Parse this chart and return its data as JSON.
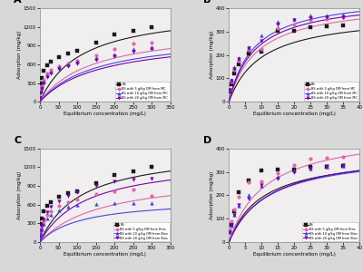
{
  "panels": [
    "A",
    "B",
    "C",
    "D"
  ],
  "bg_color": "#e8e8e8",
  "panel_A": {
    "title": "A",
    "xlabel": "Equilibrium concentration (mg/L)",
    "ylabel": "Adsorption (mg/kg)",
    "xlim": [
      0,
      350
    ],
    "ylim": [
      0,
      1500
    ],
    "xticks": [
      0,
      50,
      100,
      150,
      200,
      250,
      300,
      350
    ],
    "yticks": [
      0,
      300,
      600,
      900,
      1200,
      1500
    ],
    "legend_loc": "lower right",
    "series": [
      {
        "label": "BS",
        "color": "#1a1a1a",
        "marker": "s",
        "scatter_x": [
          1,
          3,
          5,
          10,
          20,
          30,
          50,
          75,
          100,
          150,
          200,
          250,
          300
        ],
        "scatter_y": [
          150,
          290,
          380,
          490,
          580,
          640,
          720,
          780,
          820,
          950,
          1080,
          1130,
          1200
        ],
        "curve_params": [
          1500,
          0.009
        ]
      },
      {
        "label": "BS with 5 g/kg OM from MC",
        "color": "#e066aa",
        "marker": "o",
        "scatter_x": [
          1,
          3,
          5,
          10,
          20,
          30,
          50,
          75,
          100,
          150,
          200,
          250,
          300
        ],
        "scatter_y": [
          80,
          180,
          250,
          350,
          450,
          510,
          570,
          620,
          660,
          740,
          840,
          930,
          950
        ],
        "curve_params": [
          1200,
          0.007
        ]
      },
      {
        "label": "BS with 10 g/kg OM from MC",
        "color": "#4444dd",
        "marker": "^",
        "scatter_x": [
          1,
          3,
          5,
          10,
          20,
          30,
          50,
          75,
          100,
          150,
          200,
          250,
          300
        ],
        "scatter_y": [
          70,
          160,
          230,
          320,
          420,
          480,
          550,
          600,
          640,
          700,
          760,
          840,
          870
        ],
        "curve_params": [
          1100,
          0.0065
        ]
      },
      {
        "label": "BS with 20 g/kg OM from MC",
        "color": "#7700aa",
        "marker": "v",
        "scatter_x": [
          1,
          3,
          5,
          10,
          20,
          30,
          50,
          75,
          100,
          150,
          200,
          250,
          300
        ],
        "scatter_y": [
          65,
          150,
          210,
          300,
          390,
          450,
          520,
          570,
          610,
          670,
          730,
          800,
          840
        ],
        "curve_params": [
          1050,
          0.0062
        ]
      }
    ]
  },
  "panel_B": {
    "title": "B",
    "xlabel": "Equilibrium concentration (mg/L)",
    "ylabel": "Adsorption (mg/kg)",
    "xlim": [
      0,
      40
    ],
    "ylim": [
      0,
      400
    ],
    "xticks": [
      0,
      5,
      10,
      15,
      20,
      25,
      30,
      35,
      40
    ],
    "yticks": [
      0,
      100,
      200,
      300,
      400
    ],
    "legend_loc": "lower right",
    "series": [
      {
        "label": "BS",
        "color": "#1a1a1a",
        "marker": "s",
        "scatter_x": [
          0.3,
          0.7,
          1.5,
          3,
          6,
          10,
          15,
          20,
          25,
          30,
          35
        ],
        "scatter_y": [
          45,
          75,
          120,
          160,
          205,
          215,
          305,
          305,
          320,
          322,
          325
        ],
        "curve_params": [
          380,
          0.1
        ]
      },
      {
        "label": "BS with 5 g/kg OM from MC",
        "color": "#e066aa",
        "marker": "o",
        "scatter_x": [
          0.3,
          0.7,
          1.5,
          3,
          6,
          10,
          15,
          20,
          25,
          30,
          35
        ],
        "scatter_y": [
          50,
          85,
          135,
          175,
          220,
          225,
          315,
          330,
          350,
          355,
          360
        ],
        "curve_params": [
          430,
          0.115
        ]
      },
      {
        "label": "BS with 10 g/kg OM from MC",
        "color": "#4444dd",
        "marker": "^",
        "scatter_x": [
          0.3,
          0.7,
          1.5,
          3,
          6,
          10,
          15,
          20,
          25,
          30,
          35
        ],
        "scatter_y": [
          55,
          92,
          148,
          188,
          235,
          285,
          340,
          355,
          368,
          370,
          373
        ],
        "curve_params": [
          460,
          0.13
        ]
      },
      {
        "label": "BS with 20 g/kg OM from MC",
        "color": "#7700aa",
        "marker": "v",
        "scatter_x": [
          0.3,
          0.7,
          1.5,
          3,
          6,
          10,
          15,
          20,
          25,
          30,
          35
        ],
        "scatter_y": [
          52,
          88,
          142,
          182,
          228,
          260,
          330,
          348,
          358,
          360,
          362
        ],
        "curve_params": [
          445,
          0.125
        ]
      }
    ]
  },
  "panel_C": {
    "title": "C",
    "xlabel": "Equilibrium concentration (mg/L)",
    "ylabel": "Adsorption (mg/kg)",
    "xlim": [
      0,
      350
    ],
    "ylim": [
      0,
      1500
    ],
    "xticks": [
      0,
      50,
      100,
      150,
      200,
      250,
      300,
      350
    ],
    "yticks": [
      0,
      300,
      600,
      900,
      1200,
      1500
    ],
    "legend_loc": "lower right",
    "series": [
      {
        "label": "BS",
        "color": "#1a1a1a",
        "marker": "s",
        "scatter_x": [
          1,
          3,
          5,
          10,
          20,
          30,
          50,
          75,
          100,
          150,
          200,
          250,
          300
        ],
        "scatter_y": [
          150,
          290,
          380,
          490,
          580,
          640,
          720,
          780,
          820,
          950,
          1080,
          1130,
          1200
        ],
        "curve_params": [
          1500,
          0.009
        ]
      },
      {
        "label": "BS with 5 g/kg OM from Bios",
        "color": "#e066aa",
        "marker": "o",
        "scatter_x": [
          1,
          3,
          5,
          10,
          20,
          30,
          50,
          75,
          100,
          150,
          200,
          250,
          300
        ],
        "scatter_y": [
          80,
          170,
          240,
          330,
          430,
          500,
          580,
          640,
          690,
          770,
          820,
          840,
          740
        ],
        "curve_params": [
          1100,
          0.006
        ]
      },
      {
        "label": "BS with 10 g/kg OM from Bios",
        "color": "#4444dd",
        "marker": "^",
        "scatter_x": [
          1,
          3,
          5,
          10,
          20,
          30,
          50,
          75,
          100,
          150,
          200,
          250,
          300
        ],
        "scatter_y": [
          65,
          150,
          210,
          295,
          380,
          440,
          510,
          560,
          590,
          615,
          630,
          625,
          620
        ],
        "curve_params": [
          700,
          0.009
        ]
      },
      {
        "label": "BS with 20 g/kg OM from Bios",
        "color": "#7700aa",
        "marker": "v",
        "scatter_x": [
          1,
          3,
          5,
          10,
          20,
          30,
          50,
          75,
          100,
          150,
          200,
          250,
          300
        ],
        "scatter_y": [
          85,
          185,
          265,
          370,
          480,
          560,
          660,
          740,
          800,
          900,
          970,
          1000,
          1020
        ],
        "curve_params": [
          1350,
          0.008
        ]
      }
    ]
  },
  "panel_D": {
    "title": "D",
    "xlabel": "Equilibrium concentration (mg/L)",
    "ylabel": "Adsorption (mg/kg)",
    "xlim": [
      0,
      40
    ],
    "ylim": [
      0,
      400
    ],
    "xticks": [
      0,
      5,
      10,
      15,
      20,
      25,
      30,
      35,
      40
    ],
    "yticks": [
      0,
      100,
      200,
      300,
      400
    ],
    "legend_loc": "lower right",
    "series": [
      {
        "label": "BS",
        "color": "#1a1a1a",
        "marker": "s",
        "scatter_x": [
          0.3,
          0.7,
          1.5,
          3,
          6,
          10,
          15,
          20,
          25,
          30,
          35
        ],
        "scatter_y": [
          45,
          75,
          130,
          215,
          265,
          305,
          310,
          310,
          320,
          322,
          325
        ],
        "curve_params": [
          380,
          0.1
        ]
      },
      {
        "label": "BS with 5 g/kg OM from Bios",
        "color": "#e066aa",
        "marker": "o",
        "scatter_x": [
          0.3,
          0.7,
          1.5,
          3,
          6,
          10,
          15,
          20,
          25,
          30,
          35
        ],
        "scatter_y": [
          50,
          88,
          140,
          195,
          255,
          260,
          295,
          330,
          355,
          360,
          365
        ],
        "curve_params": [
          480,
          0.09
        ]
      },
      {
        "label": "BS with 10 g/kg OM from Bios",
        "color": "#4444dd",
        "marker": "^",
        "scatter_x": [
          0.3,
          0.7,
          1.5,
          3,
          6,
          10,
          15,
          20,
          25,
          30,
          35
        ],
        "scatter_y": [
          42,
          70,
          115,
          155,
          200,
          240,
          280,
          305,
          315,
          320,
          325
        ],
        "curve_params": [
          390,
          0.085
        ]
      },
      {
        "label": "BS with 20 g/kg OM from Bios",
        "color": "#7700aa",
        "marker": "v",
        "scatter_x": [
          0.3,
          0.7,
          1.5,
          3,
          6,
          10,
          15,
          20,
          25,
          30,
          35
        ],
        "scatter_y": [
          42,
          72,
          118,
          160,
          185,
          245,
          270,
          300,
          315,
          325,
          330
        ],
        "curve_params": [
          400,
          0.082
        ]
      }
    ]
  }
}
